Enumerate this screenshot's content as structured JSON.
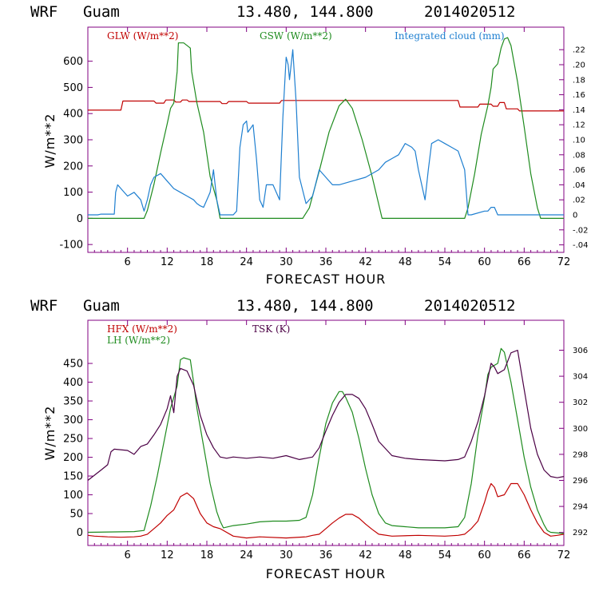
{
  "header": {
    "model": "WRF",
    "location": "Guam",
    "coords": "13.480, 144.800",
    "init_time": "2014020512"
  },
  "colors": {
    "frame": "#800080",
    "glw": "#c00000",
    "gsw": "#1e8b1e",
    "cloud": "#1e7fd0",
    "hfx": "#c00000",
    "lh": "#1e8b1e",
    "tsk": "#4b0045"
  },
  "chart_data": [
    {
      "type": "line",
      "xlabel": "FORECAST HOUR",
      "ylabel": "W/m**2",
      "xlim": [
        0,
        72
      ],
      "ylim": [
        -130,
        730
      ],
      "y2lim": [
        -0.05,
        0.25
      ],
      "xticks": [
        "6",
        "12",
        "18",
        "24",
        "30",
        "36",
        "42",
        "48",
        "54",
        "60",
        "66",
        "72"
      ],
      "yticks": [
        "-100",
        "0",
        "100",
        "200",
        "300",
        "400",
        "500",
        "600"
      ],
      "y2ticks": [
        "-.04",
        "-.02",
        "0",
        ".02",
        ".04",
        ".06",
        ".08",
        ".10",
        ".12",
        ".14",
        ".16",
        ".18",
        ".20",
        ".22"
      ],
      "series": [
        {
          "name": "GLW (W/m**2)",
          "axis": "left",
          "color": "#c00000",
          "x": [
            0,
            5,
            5.3,
            10,
            10.3,
            11.5,
            11.8,
            13,
            13.3,
            14,
            14.3,
            15,
            15.3,
            20,
            20.3,
            21,
            21.3,
            24,
            24.3,
            29,
            29.3,
            56,
            56.3,
            59,
            59.3,
            61,
            61.3,
            62,
            62.3,
            63,
            63.3,
            65,
            65.3,
            72
          ],
          "y": [
            413,
            413,
            448,
            448,
            440,
            440,
            452,
            452,
            444,
            444,
            452,
            452,
            446,
            446,
            438,
            438,
            446,
            446,
            440,
            440,
            450,
            450,
            425,
            425,
            436,
            436,
            428,
            428,
            442,
            442,
            418,
            418,
            410,
            410
          ]
        },
        {
          "name": "GSW (W/m**2)",
          "axis": "left",
          "color": "#1e8b1e",
          "x": [
            0,
            8.5,
            9,
            10,
            11,
            12,
            12.5,
            13,
            13.5,
            13.7,
            14.5,
            15.5,
            15.7,
            16.5,
            17.5,
            18.5,
            19.5,
            20,
            32.5,
            33.5,
            35,
            36.5,
            38,
            39,
            40,
            41.5,
            43,
            44.5,
            57,
            57.5,
            58.5,
            59.5,
            60.5,
            61,
            61.3,
            62,
            62.5,
            63,
            63.5,
            64,
            65,
            66,
            67,
            68,
            68.5,
            72
          ],
          "y": [
            0,
            0,
            30,
            130,
            250,
            360,
            420,
            440,
            560,
            670,
            670,
            650,
            560,
            440,
            330,
            160,
            70,
            0,
            0,
            40,
            180,
            330,
            430,
            455,
            420,
            300,
            160,
            0,
            0,
            40,
            170,
            320,
            430,
            500,
            570,
            590,
            650,
            685,
            690,
            660,
            520,
            350,
            170,
            40,
            0,
            0
          ]
        },
        {
          "name": "Integrated cloud (mm)",
          "axis": "right",
          "color": "#1e7fd0",
          "x": [
            0,
            1.5,
            2,
            3.5,
            4,
            4.2,
            4.5,
            5,
            6,
            7,
            8,
            8.5,
            9,
            9.5,
            10,
            11,
            12,
            13,
            14,
            15,
            16,
            16.5,
            17,
            17.5,
            18,
            18.5,
            19,
            19.5,
            20,
            21,
            22,
            22.5,
            23,
            23.5,
            24,
            24.2,
            25,
            25.5,
            26,
            26.5,
            27,
            28,
            28.5,
            29,
            29.5,
            30,
            30.3,
            30.5,
            31,
            31.5,
            32,
            33,
            34,
            35,
            36,
            37,
            38,
            40,
            42,
            44,
            45,
            46,
            47,
            48,
            49,
            49.5,
            50,
            51,
            51.5,
            52,
            53,
            54,
            55,
            56,
            57,
            57.5,
            58,
            60,
            60.5,
            61,
            61.5,
            62,
            72
          ],
          "y": [
            0,
            0,
            0.001,
            0.001,
            0.001,
            0.03,
            0.04,
            0.035,
            0.025,
            0.03,
            0.02,
            0.005,
            0.02,
            0.04,
            0.05,
            0.055,
            0.045,
            0.035,
            0.03,
            0.025,
            0.02,
            0.015,
            0.012,
            0.01,
            0.02,
            0.03,
            0.06,
            0.02,
            0.0,
            0.0,
            0.0,
            0.005,
            0.09,
            0.12,
            0.125,
            0.11,
            0.12,
            0.075,
            0.02,
            0.01,
            0.04,
            0.04,
            0.03,
            0.02,
            0.13,
            0.21,
            0.2,
            0.18,
            0.22,
            0.15,
            0.05,
            0.015,
            0.025,
            0.06,
            0.05,
            0.04,
            0.04,
            0.045,
            0.05,
            0.06,
            0.07,
            0.075,
            0.08,
            0.095,
            0.09,
            0.085,
            0.06,
            0.02,
            0.06,
            0.095,
            0.1,
            0.095,
            0.09,
            0.085,
            0.06,
            0.0,
            0.0,
            0.005,
            0.005,
            0.01,
            0.01,
            0.0,
            0.0
          ]
        }
      ]
    },
    {
      "type": "line",
      "xlabel": "FORECAST HOUR",
      "ylabel": "W/m**2",
      "xlim": [
        0,
        72
      ],
      "ylim": [
        -35,
        565
      ],
      "y2lim": [
        291,
        308.3
      ],
      "xticks": [
        "6",
        "12",
        "18",
        "24",
        "30",
        "36",
        "42",
        "48",
        "54",
        "60",
        "66",
        "72"
      ],
      "yticks": [
        "0",
        "50",
        "100",
        "150",
        "200",
        "250",
        "300",
        "350",
        "400",
        "450"
      ],
      "y2ticks": [
        "292",
        "294",
        "296",
        "298",
        "300",
        "302",
        "304",
        "306"
      ],
      "series": [
        {
          "name": "HFX (W/m**2)",
          "axis": "left",
          "color": "#c00000",
          "x": [
            0,
            1,
            3,
            5,
            7,
            8,
            9,
            10,
            11,
            12,
            13,
            14,
            15,
            16,
            17,
            18,
            19,
            20,
            22,
            24,
            26,
            30,
            33,
            34,
            35,
            36,
            37,
            38,
            39,
            40,
            41,
            42,
            43,
            44,
            46,
            50,
            54,
            56,
            57,
            58,
            59,
            60,
            60.5,
            61,
            61.5,
            62,
            63,
            64,
            65,
            66,
            67,
            68,
            69,
            70,
            71,
            72
          ],
          "y": [
            -8,
            -10,
            -12,
            -13,
            -12,
            -10,
            -5,
            10,
            25,
            45,
            60,
            95,
            105,
            90,
            50,
            25,
            15,
            10,
            -10,
            -15,
            -12,
            -15,
            -12,
            -8,
            -5,
            10,
            25,
            38,
            48,
            48,
            38,
            22,
            8,
            -5,
            -10,
            -8,
            -10,
            -8,
            -5,
            10,
            30,
            80,
            110,
            130,
            120,
            95,
            100,
            130,
            130,
            100,
            60,
            25,
            0,
            -10,
            -8,
            -5
          ]
        },
        {
          "name": "LH (W/m**2)",
          "axis": "left",
          "color": "#1e8b1e",
          "x": [
            0,
            7,
            8.5,
            9.5,
            10.5,
            11.5,
            12.5,
            13.5,
            14,
            14.5,
            15.5,
            16,
            16.5,
            17.5,
            18.5,
            19.5,
            20,
            20.5,
            22,
            24,
            26,
            28,
            30,
            32,
            33,
            34,
            35,
            36,
            37,
            38,
            38.5,
            39,
            40,
            41,
            42,
            43,
            44,
            45,
            46,
            48,
            50,
            54,
            56,
            57,
            58,
            59,
            60,
            60.5,
            61,
            62,
            62.5,
            63,
            63.5,
            64,
            65,
            66,
            67,
            68,
            69,
            69.5,
            70,
            72
          ],
          "y": [
            0,
            2,
            5,
            70,
            150,
            240,
            330,
            390,
            460,
            465,
            460,
            400,
            330,
            230,
            130,
            55,
            30,
            12,
            18,
            22,
            28,
            30,
            30,
            32,
            40,
            100,
            200,
            290,
            345,
            375,
            375,
            360,
            320,
            250,
            170,
            100,
            50,
            25,
            18,
            15,
            12,
            12,
            15,
            40,
            130,
            260,
            360,
            420,
            440,
            450,
            490,
            480,
            440,
            400,
            300,
            200,
            120,
            60,
            20,
            5,
            0,
            -3
          ]
        },
        {
          "name": "TSK (K)",
          "axis": "right",
          "color": "#4b0045",
          "x": [
            0,
            1,
            2,
            3,
            3.5,
            4,
            6,
            7,
            8,
            9,
            10,
            11,
            12,
            12.5,
            13,
            13.5,
            14,
            15,
            16,
            17,
            18,
            19,
            20,
            21,
            22,
            24,
            26,
            28,
            30,
            32,
            33,
            34,
            35,
            36,
            37,
            38,
            39,
            40,
            41,
            42,
            43,
            44,
            46,
            48,
            50,
            54,
            56,
            57,
            58,
            59,
            60,
            61,
            61.5,
            62,
            63,
            64,
            65,
            66,
            67,
            68,
            69,
            70,
            71,
            72
          ],
          "y": [
            296.0,
            296.4,
            296.8,
            297.2,
            298.2,
            298.4,
            298.3,
            298.0,
            298.6,
            298.8,
            299.5,
            300.3,
            301.5,
            302.5,
            301.2,
            304.0,
            304.6,
            304.4,
            303.3,
            301.0,
            299.5,
            298.5,
            297.8,
            297.7,
            297.8,
            297.7,
            297.8,
            297.7,
            297.9,
            297.6,
            297.7,
            297.8,
            298.5,
            299.8,
            301.0,
            302.0,
            302.6,
            302.6,
            302.3,
            301.5,
            300.3,
            299.0,
            297.9,
            297.7,
            297.6,
            297.5,
            297.6,
            297.8,
            299.0,
            300.5,
            302.5,
            305.0,
            304.7,
            304.2,
            304.5,
            305.8,
            306.0,
            303.0,
            300.0,
            298.0,
            296.8,
            296.3,
            296.2,
            296.3
          ]
        }
      ]
    }
  ]
}
